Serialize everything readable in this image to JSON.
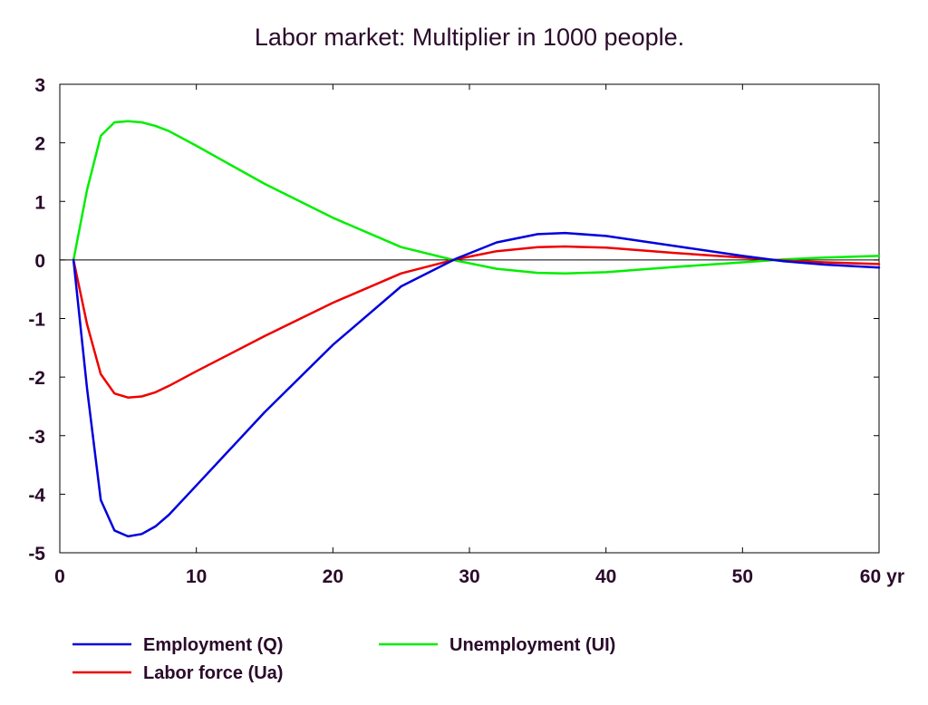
{
  "chart_data": {
    "type": "line",
    "title": "Labor market: Multiplier in 1000 people.",
    "x_unit": "yr",
    "xlim": [
      0,
      60
    ],
    "ylim": [
      -5,
      3
    ],
    "x_ticks": [
      "0",
      "10",
      "20",
      "30",
      "40",
      "50",
      "60"
    ],
    "y_ticks": [
      "3",
      "2",
      "1",
      "0",
      "-1",
      "-2",
      "-3",
      "-4",
      "-5"
    ],
    "grid": false,
    "legend_position": "bottom",
    "x": [
      1,
      2,
      3,
      4,
      5,
      6,
      7,
      8,
      10,
      12,
      15,
      20,
      25,
      29,
      32,
      35,
      37,
      40,
      45,
      50,
      53,
      56,
      60
    ],
    "series": [
      {
        "name": "Employment (Q)",
        "color": "#0000dd",
        "values": [
          0,
          -2.2,
          -4.1,
          -4.62,
          -4.72,
          -4.68,
          -4.55,
          -4.35,
          -3.85,
          -3.35,
          -2.6,
          -1.45,
          -0.45,
          0.02,
          0.3,
          0.44,
          0.46,
          0.41,
          0.24,
          0.07,
          -0.02,
          -0.08,
          -0.13
        ]
      },
      {
        "name": "Labor force (Ua)",
        "color": "#ee0000",
        "values": [
          0,
          -1.1,
          -1.95,
          -2.28,
          -2.35,
          -2.33,
          -2.26,
          -2.15,
          -1.9,
          -1.66,
          -1.3,
          -0.73,
          -0.23,
          0.01,
          0.15,
          0.22,
          0.23,
          0.21,
          0.12,
          0.04,
          -0.01,
          -0.04,
          -0.07
        ]
      },
      {
        "name": "Unemployment (UI)",
        "color": "#00ee00",
        "values": [
          0,
          1.2,
          2.12,
          2.35,
          2.37,
          2.35,
          2.29,
          2.2,
          1.95,
          1.69,
          1.3,
          0.72,
          0.22,
          -0.01,
          -0.15,
          -0.22,
          -0.23,
          -0.21,
          -0.12,
          -0.04,
          0.01,
          0.04,
          0.07
        ]
      }
    ]
  }
}
